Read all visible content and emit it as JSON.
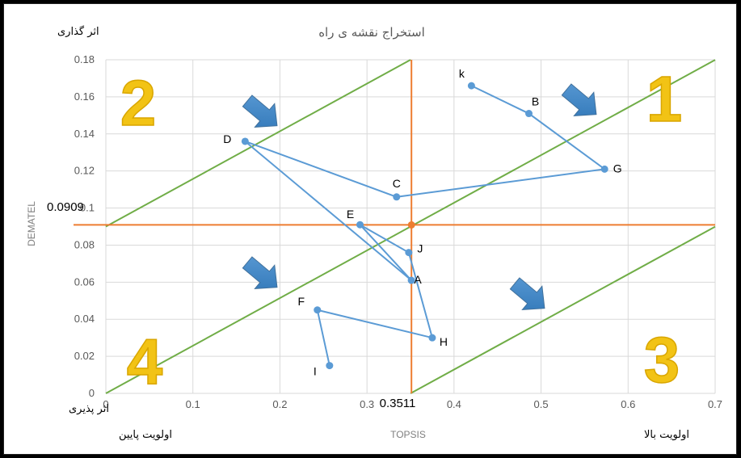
{
  "chart_data": {
    "type": "scatter",
    "title": "استخراج نقشه ی راه",
    "xlabel": "TOPSIS",
    "ylabel": "DEMATEL",
    "xlim": [
      0,
      0.7
    ],
    "ylim": [
      0,
      0.18
    ],
    "x_ticks": [
      "0",
      "0.1",
      "0.2",
      "0.3",
      "0.4",
      "0.5",
      "0.6",
      "0.7"
    ],
    "y_ticks": [
      "0",
      "0.02",
      "0.04",
      "0.06",
      "0.08",
      "0.1",
      "0.12",
      "0.14",
      "0.16",
      "0.18"
    ],
    "grid": true,
    "threshold_x": 0.3511,
    "threshold_y": 0.0909,
    "threshold_x_label": "0.3511",
    "threshold_y_label": "0.0909",
    "points": [
      {
        "label": "k",
        "x": 0.42,
        "y": 0.166
      },
      {
        "label": "B",
        "x": 0.486,
        "y": 0.151
      },
      {
        "label": "G",
        "x": 0.573,
        "y": 0.121
      },
      {
        "label": "C",
        "x": 0.334,
        "y": 0.106
      },
      {
        "label": "D",
        "x": 0.16,
        "y": 0.136
      },
      {
        "label": "A",
        "x": 0.351,
        "y": 0.061
      },
      {
        "label": "E",
        "x": 0.292,
        "y": 0.091
      },
      {
        "label": "J",
        "x": 0.348,
        "y": 0.076
      },
      {
        "label": "H",
        "x": 0.375,
        "y": 0.03
      },
      {
        "label": "F",
        "x": 0.243,
        "y": 0.045
      },
      {
        "label": "I",
        "x": 0.257,
        "y": 0.015
      }
    ],
    "diagonal_lines": [
      {
        "intercept": 0.09,
        "slope": 0.2571
      },
      {
        "intercept": 0.0,
        "slope": 0.2571
      },
      {
        "intercept": -0.09,
        "slope": 0.2571
      }
    ],
    "line_color": "#5b9bd5",
    "threshold_color": "#ed7d31",
    "diagonal_color": "#70ad47"
  },
  "corner_labels": {
    "top_left": "اثر گذاری",
    "bottom_left": "اثر پذیری",
    "bottom_left_under": "اولویت پایین",
    "bottom_right": "اولویت بالا"
  },
  "quadrants": [
    "1",
    "2",
    "3",
    "4"
  ]
}
